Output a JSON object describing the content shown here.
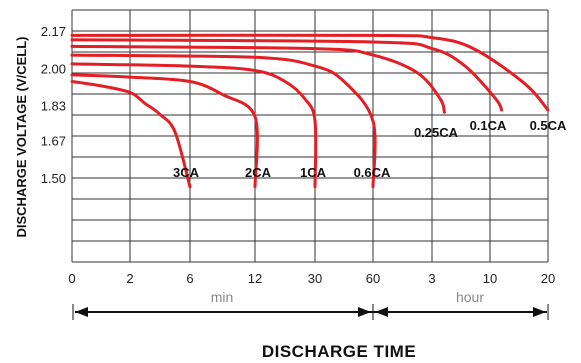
{
  "chart_data": {
    "type": "line",
    "ylabel": "DISCHARGE VOLTAGE (V/CELL)",
    "xlabel": "DISCHARGE TIME",
    "y_ticks": [
      "2.17",
      "2.00",
      "1.83",
      "1.67",
      "1.50"
    ],
    "x_ticks": [
      "0",
      "2",
      "6",
      "12",
      "30",
      "60",
      "3",
      "10",
      "20"
    ],
    "x_units": [
      {
        "label": "min",
        "range": [
          "0",
          "60"
        ]
      },
      {
        "label": "hour",
        "range": [
          "60",
          "20"
        ]
      }
    ],
    "grid": true,
    "line_color": "#e31e24",
    "series": [
      {
        "name": "3CA",
        "points": [
          [
            0,
            1.94
          ],
          [
            1,
            1.92
          ],
          [
            2,
            1.89
          ],
          [
            3,
            1.84
          ],
          [
            4,
            1.79
          ],
          [
            5,
            1.71
          ],
          [
            6,
            1.46
          ]
        ]
      },
      {
        "name": "2CA",
        "points": [
          [
            0,
            1.97
          ],
          [
            2,
            1.96
          ],
          [
            6,
            1.94
          ],
          [
            9,
            1.88
          ],
          [
            12,
            1.78
          ],
          [
            12,
            1.46
          ]
        ]
      },
      {
        "name": "1CA",
        "points": [
          [
            0,
            2.02
          ],
          [
            6,
            2.01
          ],
          [
            12,
            1.99
          ],
          [
            21,
            1.94
          ],
          [
            27,
            1.86
          ],
          [
            30,
            1.76
          ],
          [
            30,
            1.46
          ]
        ]
      },
      {
        "name": "0.6CA",
        "points": [
          [
            0,
            2.06
          ],
          [
            12,
            2.05
          ],
          [
            30,
            2.01
          ],
          [
            45,
            1.94
          ],
          [
            60,
            1.76
          ],
          [
            60,
            1.46
          ]
        ]
      },
      {
        "name": "0.25CA",
        "points": [
          [
            0,
            2.1
          ],
          [
            30,
            2.09
          ],
          [
            60,
            2.06
          ],
          [
            150,
            1.98
          ],
          [
            240,
            1.86
          ],
          [
            270,
            1.8
          ]
        ]
      },
      {
        "name": "0.1CA",
        "points": [
          [
            0,
            2.13
          ],
          [
            60,
            2.12
          ],
          [
            180,
            2.09
          ],
          [
            420,
            2.01
          ],
          [
            660,
            1.86
          ],
          [
            720,
            1.81
          ]
        ]
      },
      {
        "name": "0.5CA",
        "points": [
          [
            0,
            2.15
          ],
          [
            60,
            2.15
          ],
          [
            180,
            2.14
          ],
          [
            480,
            2.09
          ],
          [
            960,
            1.93
          ],
          [
            1200,
            1.81
          ]
        ]
      }
    ]
  }
}
